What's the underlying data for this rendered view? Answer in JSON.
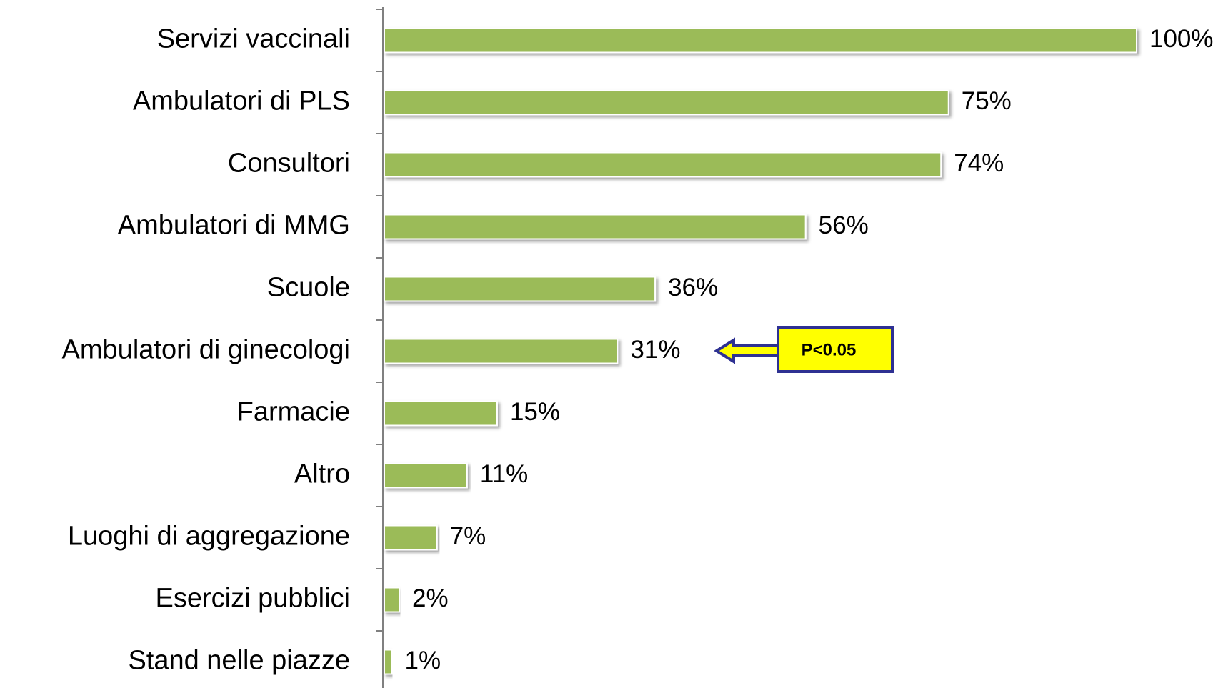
{
  "chart_data": {
    "type": "bar",
    "orientation": "horizontal",
    "categories": [
      "Servizi vaccinali",
      "Ambulatori di PLS",
      "Consultori",
      "Ambulatori di MMG",
      "Scuole",
      "Ambulatori di ginecologi",
      "Farmacie",
      "Altro",
      "Luoghi di aggregazione",
      "Esercizi pubblici",
      "Stand nelle piazze"
    ],
    "values": [
      100,
      75,
      74,
      56,
      36,
      31,
      15,
      11,
      7,
      2,
      1
    ],
    "value_labels": [
      "100%",
      "75%",
      "74%",
      "56%",
      "36%",
      "31%",
      "15%",
      "11%",
      "7%",
      "2%",
      "1%"
    ],
    "color": "#9bbb59",
    "xlim": [
      0,
      100
    ],
    "annotation": "P<0.05"
  }
}
